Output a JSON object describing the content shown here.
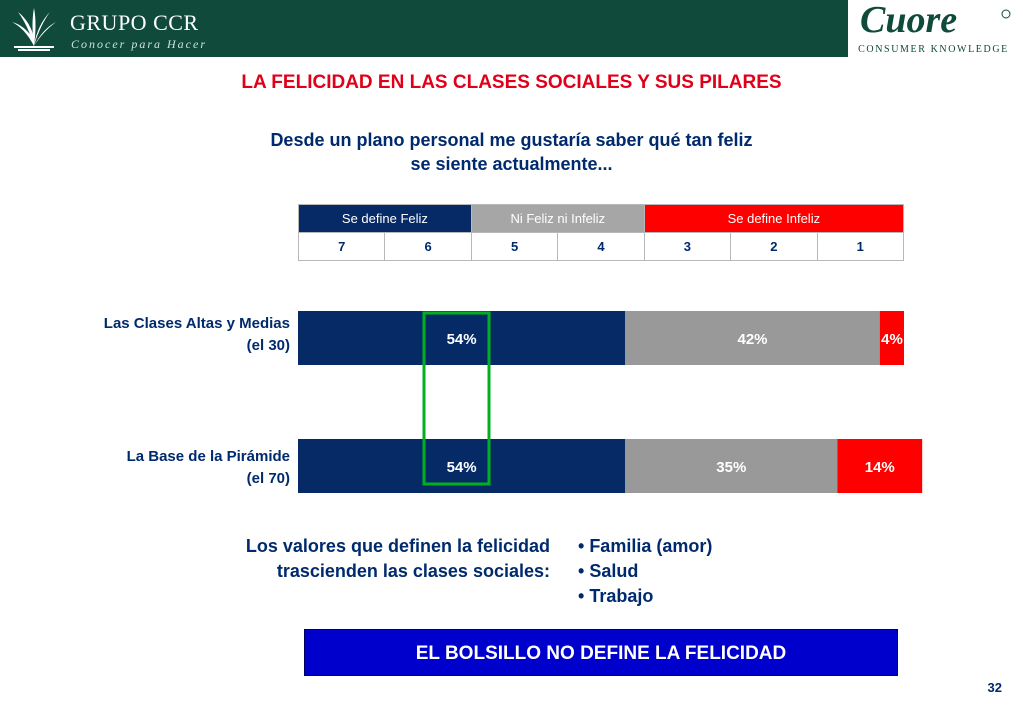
{
  "header": {
    "brand_name": "GRUPO CCR",
    "brand_tagline": "Conocer para Hacer",
    "partner_tagline": "CONSUMER KNOWLEDGE"
  },
  "title": "LA FELICIDAD EN LAS CLASES SOCIALES Y SUS PILARES",
  "question": [
    "Desde un plano personal me gustaría saber qué tan feliz",
    "se siente actualmente..."
  ],
  "scale": {
    "groups": [
      "Se define Feliz",
      "Ni Feliz ni Infeliz",
      "Se define Infeliz"
    ],
    "points": [
      "7",
      "6",
      "5",
      "4",
      "3",
      "2",
      "1"
    ]
  },
  "chart_data": {
    "type": "bar",
    "orientation": "horizontal",
    "stacked": true,
    "categories": [
      [
        "Las Clases Altas y Medias",
        "(el 30)"
      ],
      [
        "La Base de la Pirámide",
        "(el 70)"
      ]
    ],
    "series": [
      {
        "name": "Se define Feliz",
        "values": [
          54,
          54
        ],
        "labels": [
          "54%",
          "54%"
        ],
        "color": "#062a66"
      },
      {
        "name": "Ni Feliz ni Infeliz",
        "values": [
          42,
          35
        ],
        "labels": [
          "42%",
          "35%"
        ],
        "color": "#999999"
      },
      {
        "name": "Se define Infeliz",
        "values": [
          4,
          14
        ],
        "labels": [
          "4%",
          "14%"
        ],
        "color": "#ff0000"
      }
    ],
    "xlim": [
      0,
      100
    ],
    "highlight_color": "#00b020"
  },
  "values_text": [
    "Los valores que definen la felicidad",
    "trascienden las clases sociales:"
  ],
  "pillars": [
    "Familia (amor)",
    "Salud",
    "Trabajo"
  ],
  "banner": "EL BOLSILLO NO DEFINE LA FELICIDAD",
  "page_number": "32"
}
